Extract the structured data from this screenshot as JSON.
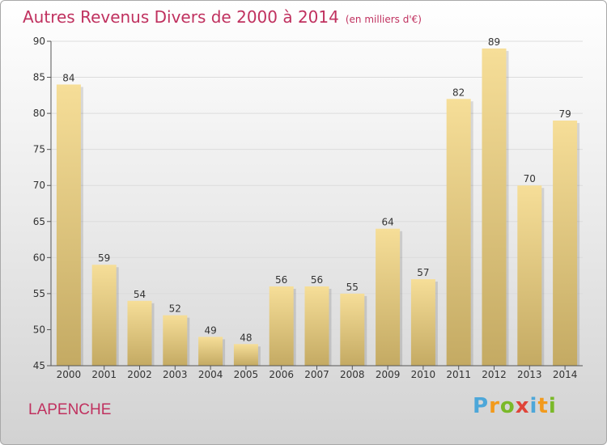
{
  "title": "Autres Revenus Divers de 2000 à 2014",
  "unit": "(en milliers d'€)",
  "region": "LAPENCHE",
  "brand": {
    "letters": [
      "P",
      "r",
      "o",
      "x",
      "i",
      "t",
      "i"
    ],
    "colors": [
      "#4da7d9",
      "#f29a1c",
      "#7ab929",
      "#e0453a",
      "#4da7d9",
      "#f29a1c",
      "#7ab929"
    ]
  },
  "colors": {
    "title": "#c0315f",
    "bar_light": "#f6de98",
    "bar_dark": "#c4aa63"
  },
  "chart_data": {
    "type": "bar",
    "categories": [
      "2000",
      "2001",
      "2002",
      "2003",
      "2004",
      "2005",
      "2006",
      "2007",
      "2008",
      "2009",
      "2010",
      "2011",
      "2012",
      "2013",
      "2014"
    ],
    "values": [
      84,
      59,
      54,
      52,
      49,
      48,
      56,
      56,
      55,
      64,
      57,
      82,
      89,
      70,
      79
    ],
    "title": "Autres Revenus Divers de 2000 à 2014",
    "subtitle": "(en milliers d'€)",
    "xlabel": "",
    "ylabel": "",
    "ylim": [
      45,
      90
    ],
    "yticks": [
      45,
      50,
      55,
      60,
      65,
      70,
      75,
      80,
      85,
      90
    ],
    "grid": true,
    "data_labels": true
  }
}
